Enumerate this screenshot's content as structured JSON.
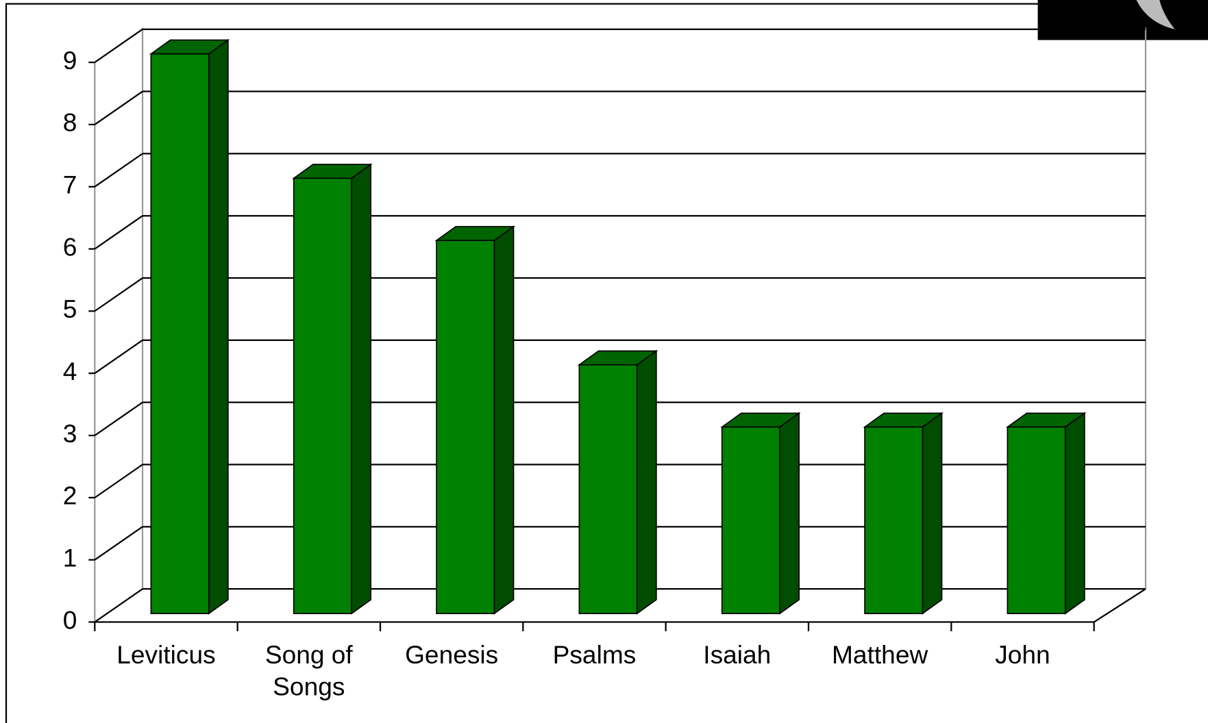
{
  "chart_data": {
    "type": "bar3d",
    "categories": [
      "Leviticus",
      "Song of Songs",
      "Genesis",
      "Psalms",
      "Isaiah",
      "Matthew",
      "John"
    ],
    "values": [
      9,
      7,
      6,
      4,
      3,
      3,
      3
    ],
    "color": "#008000",
    "ylim": [
      0,
      9
    ],
    "yticks": [
      0,
      1,
      2,
      3,
      4,
      5,
      6,
      7,
      8,
      9
    ],
    "grid": true
  }
}
